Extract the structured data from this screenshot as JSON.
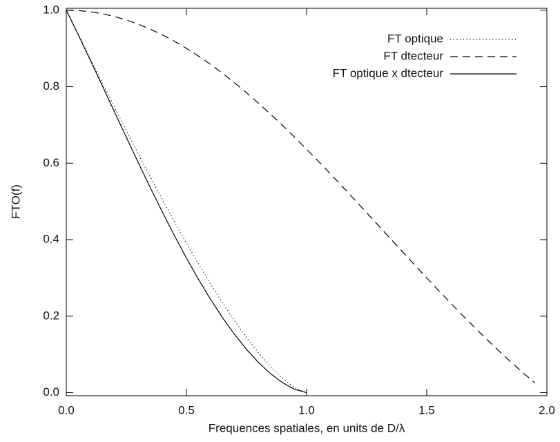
{
  "chart_data": {
    "type": "line",
    "x_label": "Frequences spatiales, en units de D/λ",
    "y_label": "FTO(f)",
    "x": [
      0,
      0.05,
      0.1,
      0.15,
      0.2,
      0.25,
      0.3,
      0.35,
      0.4,
      0.45,
      0.5,
      0.55,
      0.6,
      0.65,
      0.7,
      0.75,
      0.8,
      0.85,
      0.9,
      0.95,
      1.0,
      1.05,
      1.1,
      1.15,
      1.2,
      1.25,
      1.3,
      1.35,
      1.4,
      1.45,
      1.5,
      1.55,
      1.6,
      1.65,
      1.7,
      1.75,
      1.8,
      1.85,
      1.9,
      1.95
    ],
    "series": [
      {
        "name": "FT optique",
        "color": "#000000",
        "dash": "dotted",
        "values": [
          1,
          0.9364,
          0.8729,
          0.8099,
          0.7471,
          0.685,
          0.6238,
          0.5636,
          0.5046,
          0.447,
          0.391,
          0.3368,
          0.2848,
          0.2351,
          0.1881,
          0.1443,
          0.1041,
          0.0682,
          0.0374,
          0.0133,
          0,
          null,
          null,
          null,
          null,
          null,
          null,
          null,
          null,
          null,
          null,
          null,
          null,
          null,
          null,
          null,
          null,
          null,
          null,
          null
        ]
      },
      {
        "name": "FT dtecteur",
        "color": "#000000",
        "dash": "dashed",
        "values": [
          1,
          0.999,
          0.9959,
          0.9908,
          0.9836,
          0.9745,
          0.9634,
          0.9504,
          0.9355,
          0.9188,
          0.9003,
          0.8802,
          0.8584,
          0.8351,
          0.8103,
          0.7842,
          0.7568,
          0.7283,
          0.6987,
          0.6681,
          0.6366,
          0.6044,
          0.5716,
          0.5383,
          0.5046,
          0.4705,
          0.4363,
          0.4021,
          0.3679,
          0.3339,
          0.3001,
          0.2667,
          0.2339,
          0.2016,
          0.17,
          0.1392,
          0.1093,
          0.0803,
          0.0524,
          0.0256
        ]
      },
      {
        "name": "FT optique x dtecteur",
        "color": "#000000",
        "dash": "solid",
        "values": [
          1,
          0.9355,
          0.8693,
          0.8024,
          0.7348,
          0.6675,
          0.601,
          0.5356,
          0.4721,
          0.4107,
          0.352,
          0.2965,
          0.2445,
          0.1963,
          0.1524,
          0.1132,
          0.0788,
          0.0497,
          0.0261,
          0.0089,
          0,
          null,
          null,
          null,
          null,
          null,
          null,
          null,
          null,
          null,
          null,
          null,
          null,
          null,
          null,
          null,
          null,
          null,
          null,
          null
        ]
      }
    ],
    "xlim": [
      0,
      2
    ],
    "xticks": [
      {
        "value": 0,
        "label": "0.0"
      },
      0.5,
      {
        "value": 1,
        "label": "1.0"
      },
      1.5,
      {
        "value": 2,
        "label": "2.0"
      }
    ],
    "ylim": [
      -0.008,
      1.005
    ],
    "yticks": [
      {
        "value": 0,
        "label": "0.0"
      },
      0.2,
      0.4,
      0.6,
      0.8,
      {
        "value": 1,
        "label": "1.0"
      }
    ],
    "legend": "upper right",
    "grid": false
  }
}
